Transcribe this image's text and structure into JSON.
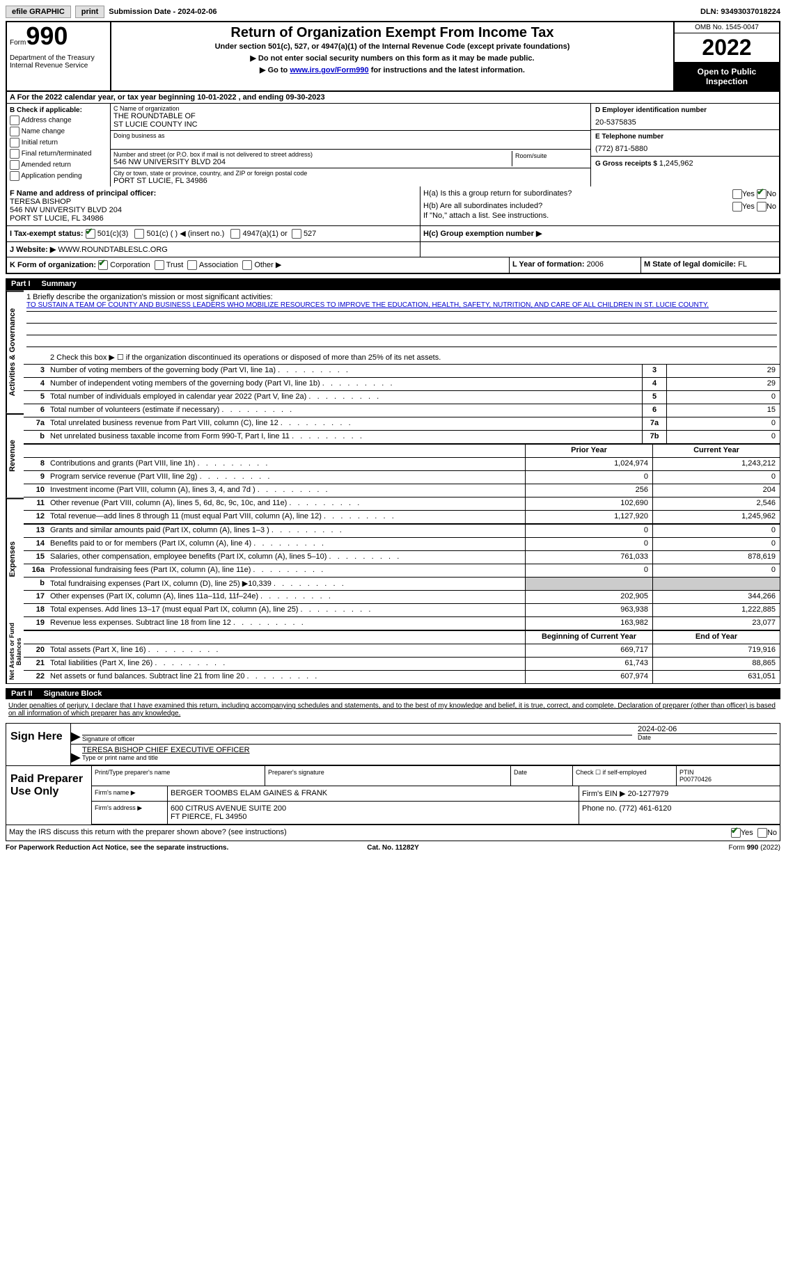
{
  "topbar": {
    "efile": "efile GRAPHIC",
    "print": "print",
    "subdate_label": "Submission Date - ",
    "subdate": "2024-02-06",
    "dln_label": "DLN: ",
    "dln": "93493037018224"
  },
  "header": {
    "form_word": "Form",
    "form_num": "990",
    "dept": "Department of the Treasury Internal Revenue Service",
    "title": "Return of Organization Exempt From Income Tax",
    "sub1": "Under section 501(c), 527, or 4947(a)(1) of the Internal Revenue Code (except private foundations)",
    "sub2": "▶ Do not enter social security numbers on this form as it may be made public.",
    "sub3_pre": "▶ Go to ",
    "sub3_link": "www.irs.gov/Form990",
    "sub3_post": " for instructions and the latest information.",
    "omb": "OMB No. 1545-0047",
    "year": "2022",
    "open": "Open to Public Inspection"
  },
  "rowA": "A For the 2022 calendar year, or tax year beginning 10-01-2022   , and ending 09-30-2023",
  "colB": {
    "label": "B Check if applicable:",
    "items": [
      "Address change",
      "Name change",
      "Initial return",
      "Final return/terminated",
      "Amended return",
      "Application pending"
    ]
  },
  "colC": {
    "name_label": "C Name of organization",
    "name": "THE ROUNDTABLE OF\nST LUCIE COUNTY INC",
    "dba_label": "Doing business as",
    "addr_label": "Number and street (or P.O. box if mail is not delivered to street address)",
    "addr": "546 NW UNIVERSITY BLVD 204",
    "room_label": "Room/suite",
    "city_label": "City or town, state or province, country, and ZIP or foreign postal code",
    "city": "PORT ST LUCIE, FL  34986"
  },
  "colD": {
    "ein_label": "D Employer identification number",
    "ein": "20-5375835",
    "tel_label": "E Telephone number",
    "tel": "(772) 871-5880",
    "gross_label": "G Gross receipts $ ",
    "gross": "1,245,962"
  },
  "rowF": {
    "label": "F Name and address of principal officer:",
    "name": "TERESA BISHOP",
    "addr1": "546 NW UNIVERSITY BLVD 204",
    "addr2": "PORT ST LUCIE, FL  34986",
    "ha": "H(a)  Is this a group return for subordinates?",
    "hb": "H(b)  Are all subordinates included?",
    "hb_note": "If \"No,\" attach a list. See instructions.",
    "yes": "Yes",
    "no": "No"
  },
  "rowI": {
    "label": "I  Tax-exempt status:",
    "opt1": "501(c)(3)",
    "opt2": "501(c) (  ) ◀ (insert no.)",
    "opt3": "4947(a)(1) or",
    "opt4": "527",
    "hc": "H(c)  Group exemption number ▶"
  },
  "rowJ": {
    "label": "J  Website: ▶",
    "value": "  WWW.ROUNDTABLESLC.ORG"
  },
  "rowK": {
    "label": "K Form of organization:",
    "opts": [
      "Corporation",
      "Trust",
      "Association",
      "Other ▶"
    ],
    "l_label": "L Year of formation: ",
    "l_val": "2006",
    "m_label": "M State of legal domicile: ",
    "m_val": "FL"
  },
  "part1": {
    "part": "Part I",
    "title": "Summary"
  },
  "mission": {
    "label": "1  Briefly describe the organization's mission or most significant activities:",
    "text": "TO SUSTAIN A TEAM OF COUNTY AND BUSINESS LEADERS WHO MOBILIZE RESOURCES TO IMPROVE THE EDUCATION, HEALTH, SAFETY, NUTRITION, AND CARE OF ALL CHILDREN IN ST. LUCIE COUNTY."
  },
  "gov": {
    "label": "Activities & Governance",
    "line2": "2   Check this box ▶ ☐  if the organization discontinued its operations or disposed of more than 25% of its net assets.",
    "rows": [
      {
        "n": "3",
        "d": "Number of voting members of the governing body (Part VI, line 1a)",
        "bn": "3",
        "v": "29"
      },
      {
        "n": "4",
        "d": "Number of independent voting members of the governing body (Part VI, line 1b)",
        "bn": "4",
        "v": "29"
      },
      {
        "n": "5",
        "d": "Total number of individuals employed in calendar year 2022 (Part V, line 2a)",
        "bn": "5",
        "v": "0"
      },
      {
        "n": "6",
        "d": "Total number of volunteers (estimate if necessary)",
        "bn": "6",
        "v": "15"
      },
      {
        "n": "7a",
        "d": "Total unrelated business revenue from Part VIII, column (C), line 12",
        "bn": "7a",
        "v": "0"
      },
      {
        "n": "b",
        "d": "Net unrelated business taxable income from Form 990-T, Part I, line 11",
        "bn": "7b",
        "v": "0"
      }
    ]
  },
  "cols": {
    "prior": "Prior Year",
    "curr": "Current Year"
  },
  "rev": {
    "label": "Revenue",
    "rows": [
      {
        "n": "8",
        "d": "Contributions and grants (Part VIII, line 1h)",
        "p": "1,024,974",
        "c": "1,243,212"
      },
      {
        "n": "9",
        "d": "Program service revenue (Part VIII, line 2g)",
        "p": "0",
        "c": "0"
      },
      {
        "n": "10",
        "d": "Investment income (Part VIII, column (A), lines 3, 4, and 7d )",
        "p": "256",
        "c": "204"
      },
      {
        "n": "11",
        "d": "Other revenue (Part VIII, column (A), lines 5, 6d, 8c, 9c, 10c, and 11e)",
        "p": "102,690",
        "c": "2,546"
      },
      {
        "n": "12",
        "d": "Total revenue—add lines 8 through 11 (must equal Part VIII, column (A), line 12)",
        "p": "1,127,920",
        "c": "1,245,962"
      }
    ]
  },
  "exp": {
    "label": "Expenses",
    "rows": [
      {
        "n": "13",
        "d": "Grants and similar amounts paid (Part IX, column (A), lines 1–3 )",
        "p": "0",
        "c": "0"
      },
      {
        "n": "14",
        "d": "Benefits paid to or for members (Part IX, column (A), line 4)",
        "p": "0",
        "c": "0"
      },
      {
        "n": "15",
        "d": "Salaries, other compensation, employee benefits (Part IX, column (A), lines 5–10)",
        "p": "761,033",
        "c": "878,619"
      },
      {
        "n": "16a",
        "d": "Professional fundraising fees (Part IX, column (A), line 11e)",
        "p": "0",
        "c": "0"
      },
      {
        "n": "b",
        "d": "Total fundraising expenses (Part IX, column (D), line 25) ▶10,339",
        "p": "",
        "c": "",
        "grey": true
      },
      {
        "n": "17",
        "d": "Other expenses (Part IX, column (A), lines 11a–11d, 11f–24e)",
        "p": "202,905",
        "c": "344,266"
      },
      {
        "n": "18",
        "d": "Total expenses. Add lines 13–17 (must equal Part IX, column (A), line 25)",
        "p": "963,938",
        "c": "1,222,885"
      },
      {
        "n": "19",
        "d": "Revenue less expenses. Subtract line 18 from line 12",
        "p": "163,982",
        "c": "23,077"
      }
    ]
  },
  "net": {
    "label": "Net Assets or Fund Balances",
    "header": {
      "p": "Beginning of Current Year",
      "c": "End of Year"
    },
    "rows": [
      {
        "n": "20",
        "d": "Total assets (Part X, line 16)",
        "p": "669,717",
        "c": "719,916"
      },
      {
        "n": "21",
        "d": "Total liabilities (Part X, line 26)",
        "p": "61,743",
        "c": "88,865"
      },
      {
        "n": "22",
        "d": "Net assets or fund balances. Subtract line 21 from line 20",
        "p": "607,974",
        "c": "631,051"
      }
    ]
  },
  "part2": {
    "part": "Part II",
    "title": "Signature Block"
  },
  "sig": {
    "penalty": "Under penalties of perjury, I declare that I have examined this return, including accompanying schedules and statements, and to the best of my knowledge and belief, it is true, correct, and complete. Declaration of preparer (other than officer) is based on all information of which preparer has any knowledge.",
    "sign_here": "Sign Here",
    "sig_of_officer": "Signature of officer",
    "date": "Date",
    "date_val": "2024-02-06",
    "officer_name": "TERESA BISHOP  CHIEF EXECUTIVE OFFICER",
    "type_or_print": "Type or print name and title"
  },
  "prep": {
    "label": "Paid Preparer Use Only",
    "h1": "Print/Type preparer's name",
    "h2": "Preparer's signature",
    "h3": "Date",
    "h4": "Check ☐ if self-employed",
    "h5_l": "PTIN",
    "h5_v": "P00770426",
    "firm_name_l": "Firm's name     ▶",
    "firm_name": "BERGER TOOMBS ELAM GAINES & FRANK",
    "firm_ein_l": "Firm's EIN ▶",
    "firm_ein": "20-1277979",
    "firm_addr_l": "Firm's address ▶",
    "firm_addr1": "600 CITRUS AVENUE SUITE 200",
    "firm_addr2": "FT PIERCE, FL  34950",
    "phone_l": "Phone no. ",
    "phone": "(772) 461-6120"
  },
  "discuss": {
    "text": "May the IRS discuss this return with the preparer shown above? (see instructions)",
    "yes": "Yes",
    "no": "No"
  },
  "footer": {
    "left": "For Paperwork Reduction Act Notice, see the separate instructions.",
    "center": "Cat. No. 11282Y",
    "right": "Form 990 (2022)"
  }
}
